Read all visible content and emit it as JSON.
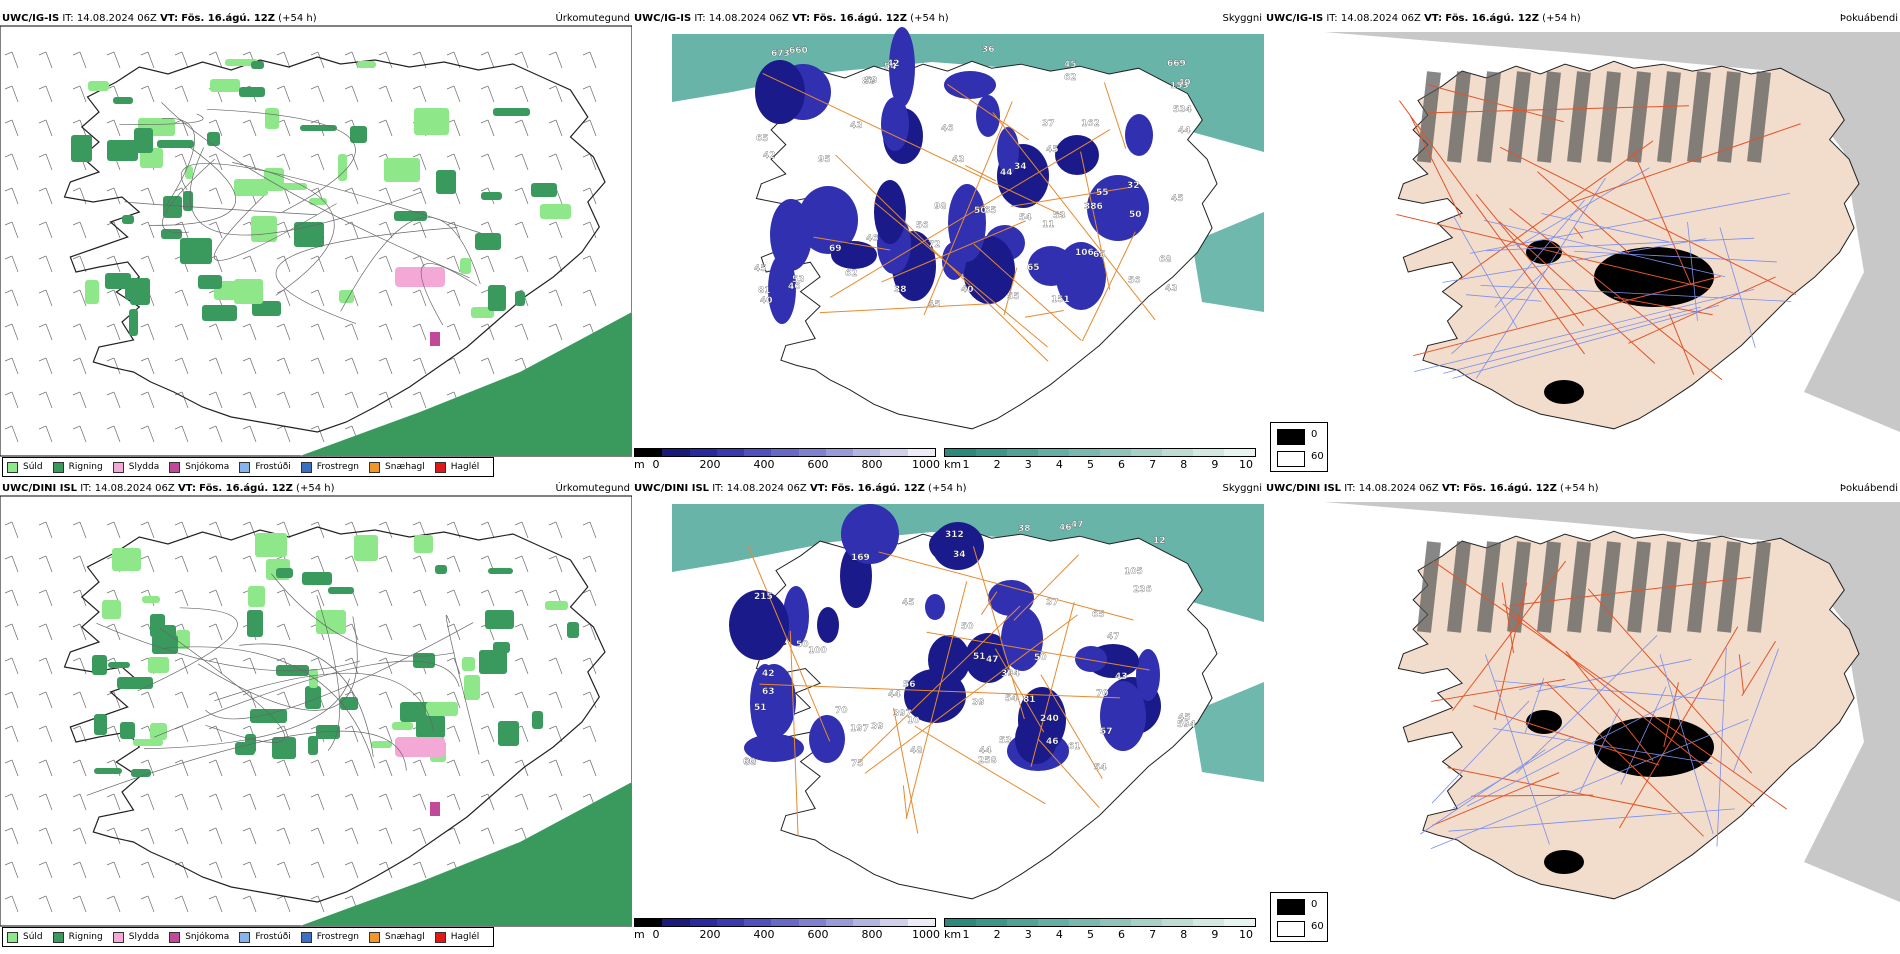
{
  "rows": [
    {
      "model": "UWC/IG-IS",
      "it_label": "IT:",
      "it_value": "14.08.2024 06Z",
      "vt_label": "VT:",
      "vt_value": "Fös. 16.ágú. 12Z",
      "lead": "(+54 h)",
      "titles": {
        "precip": "Úrkomutegund",
        "visibility": "Skyggni",
        "dewpoint": "Þokuábendi"
      },
      "labels": [
        "45",
        "46",
        "44",
        "34",
        "65",
        "56",
        "65",
        "50",
        "69",
        "53",
        "55",
        "54",
        "38",
        "43",
        "46",
        "37",
        "42",
        "50",
        "46",
        "43",
        "45",
        "44",
        "40",
        "45",
        "54",
        "42",
        "43",
        "53",
        "55",
        "36",
        "65",
        "81",
        "88",
        "40",
        "11",
        "40",
        "56",
        "32",
        "65",
        "45",
        "68",
        "62",
        "59",
        "62",
        "72",
        "669",
        "673",
        "98",
        "45",
        "386",
        "660",
        "534",
        "151",
        "162",
        "153",
        "95",
        "106"
      ]
    },
    {
      "model": "UWC/DINI ISL",
      "it_label": "IT:",
      "it_value": "14.08.2024 06Z",
      "vt_label": "VT:",
      "vt_value": "Fös. 16.ágú. 12Z",
      "lead": "(+54 h)",
      "titles": {
        "precip": "Úrkomutegund",
        "visibility": "Skyggni",
        "dewpoint": "Þokuábendi"
      },
      "labels": [
        "47",
        "46",
        "38",
        "39",
        "50",
        "70",
        "47",
        "45",
        "100",
        "37",
        "38",
        "10",
        "70",
        "56",
        "57",
        "46",
        "44",
        "54",
        "47",
        "34",
        "50",
        "42",
        "39",
        "61",
        "51",
        "60",
        "45",
        "44",
        "169",
        "105",
        "65",
        "54",
        "53",
        "75",
        "48",
        "43",
        "51",
        "12",
        "594",
        "312",
        "394",
        "397",
        "236",
        "240",
        "197",
        "81",
        "258",
        "215",
        "63",
        "50"
      ]
    }
  ],
  "precip_legend": [
    {
      "label": "Súld",
      "color": "#8ee88a"
    },
    {
      "label": "Rigning",
      "color": "#3a9a5e"
    },
    {
      "label": "Slydda",
      "color": "#f4a8d6"
    },
    {
      "label": "Snjókoma",
      "color": "#c2489a"
    },
    {
      "label": "Frostúði",
      "color": "#88b4ee"
    },
    {
      "label": "Frostregn",
      "color": "#3a70c4"
    },
    {
      "label": "Snæhagl",
      "color": "#f0962a"
    },
    {
      "label": "Haglél",
      "color": "#e01818"
    }
  ],
  "cloudbase_bar": {
    "unit": "m",
    "ticks": [
      "0",
      "200",
      "400",
      "600",
      "800",
      "1000"
    ],
    "colors": [
      "#000000",
      "#1a1a7a",
      "#2a2aa0",
      "#3a3ab0",
      "#5050c0",
      "#6868c8",
      "#8080d0",
      "#9a9ad8",
      "#b4b4e0",
      "#d0d0ea",
      "#ececf6"
    ]
  },
  "vis_bar": {
    "unit": "km",
    "ticks": [
      "1",
      "2",
      "3",
      "4",
      "5",
      "6",
      "7",
      "8",
      "9",
      "10"
    ],
    "colors": [
      "#2a8a7e",
      "#3c958a",
      "#50a296",
      "#64aea2",
      "#7ab8ae",
      "#90c4ba",
      "#a6d0c8",
      "#bcdcd4",
      "#d2e8e2",
      "#e8f4f0"
    ]
  },
  "dewpoint_key": {
    "values": [
      "0",
      "60"
    ],
    "colors": [
      "#000000",
      "#ffffff"
    ]
  }
}
